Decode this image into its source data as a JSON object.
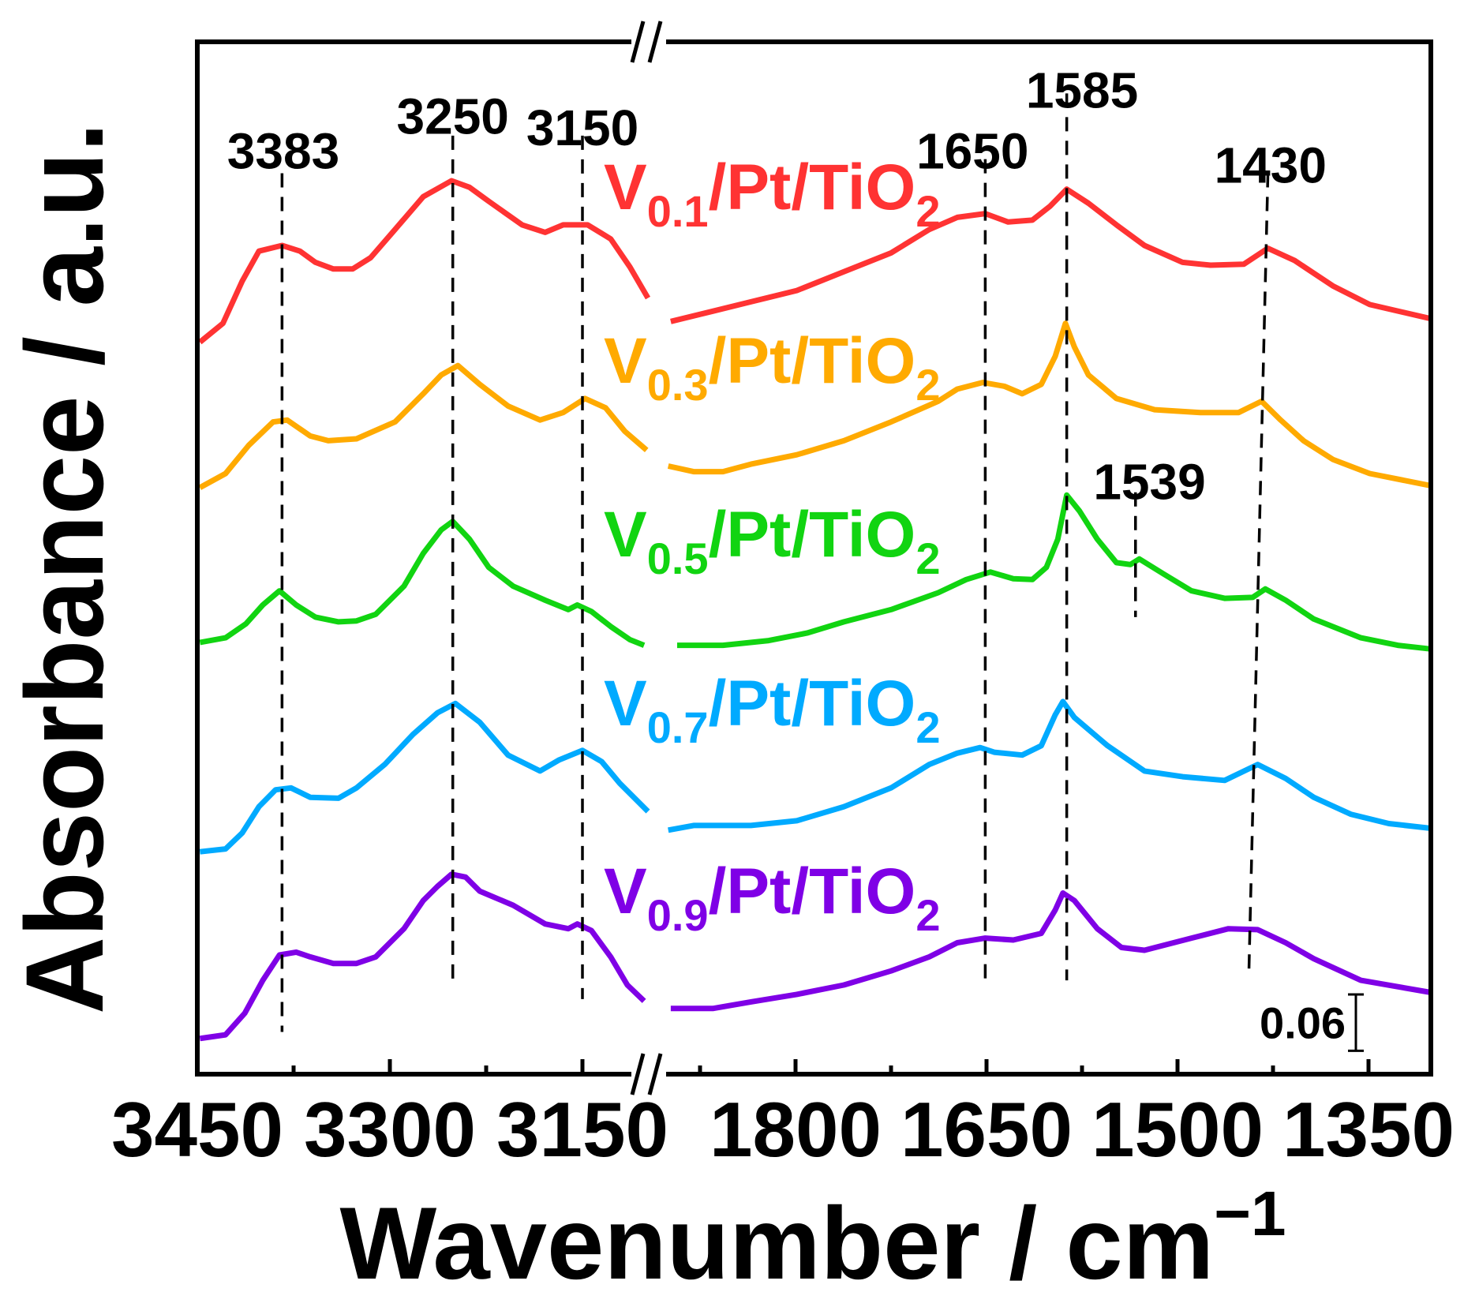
{
  "chart_data": {
    "type": "line",
    "title": "",
    "xlabel": "Wavenumber / cm",
    "xlabel_superscript": "−1",
    "ylabel": "Absorbance / a.u.",
    "x_axis": {
      "reversed": true,
      "broken": true,
      "segments": [
        {
          "name": "left",
          "range": [
            3450,
            3095
          ],
          "ticks": [
            3450,
            3300,
            3150
          ],
          "minor_ticks": [
            3375,
            3225
          ]
        },
        {
          "name": "right",
          "range": [
            1905,
            1300
          ],
          "ticks": [
            1800,
            1650,
            1500,
            1350
          ],
          "minor_ticks": [
            1875,
            1725,
            1575,
            1425
          ]
        }
      ],
      "tick_labels": [
        "3450",
        "3300",
        "3150",
        "1800",
        "1650",
        "1500",
        "1350"
      ]
    },
    "ylim": [
      0,
      1.1
    ],
    "grid": false,
    "scale_bar": {
      "value": 0.06,
      "label": "0.06"
    },
    "series": [
      {
        "name": "V0.1/Pt/TiO2",
        "label_main": "V",
        "label_sub": "0.1",
        "label_rest": "/Pt/TiO",
        "label_sub2": "2",
        "color": "#ff3333",
        "left": {
          "x": [
            3448,
            3430,
            3415,
            3402,
            3384,
            3370,
            3358,
            3344,
            3329,
            3315,
            3296,
            3274,
            3252,
            3238,
            3223,
            3197,
            3179,
            3165,
            3146,
            3128,
            3113,
            3099
          ],
          "y": [
            0.78,
            0.8,
            0.845,
            0.877,
            0.883,
            0.877,
            0.865,
            0.858,
            0.858,
            0.87,
            0.9,
            0.935,
            0.952,
            0.945,
            0.93,
            0.905,
            0.897,
            0.905,
            0.905,
            0.89,
            0.86,
            0.827
          ]
        },
        "right": {
          "x": [
            1898,
            1865,
            1835,
            1799,
            1762,
            1725,
            1695,
            1673,
            1651,
            1633,
            1614,
            1600,
            1587,
            1570,
            1548,
            1526,
            1496,
            1474,
            1448,
            1429,
            1408,
            1378,
            1349,
            1301
          ],
          "y": [
            0.802,
            0.813,
            0.823,
            0.835,
            0.855,
            0.875,
            0.9,
            0.913,
            0.917,
            0.908,
            0.91,
            0.925,
            0.943,
            0.928,
            0.905,
            0.883,
            0.865,
            0.862,
            0.863,
            0.88,
            0.867,
            0.84,
            0.82,
            0.805
          ]
        }
      },
      {
        "name": "V0.3/Pt/TiO2",
        "label_main": "V",
        "label_sub": "0.3",
        "label_rest": "/Pt/TiO",
        "label_sub2": "2",
        "color": "#ffaa00",
        "left": {
          "x": [
            3448,
            3428,
            3410,
            3391,
            3380,
            3362,
            3348,
            3326,
            3296,
            3274,
            3260,
            3247,
            3230,
            3208,
            3183,
            3165,
            3148,
            3132,
            3117,
            3100
          ],
          "y": [
            0.625,
            0.64,
            0.67,
            0.695,
            0.697,
            0.68,
            0.675,
            0.677,
            0.695,
            0.725,
            0.745,
            0.755,
            0.735,
            0.712,
            0.697,
            0.705,
            0.72,
            0.71,
            0.685,
            0.665
          ]
        },
        "right": {
          "x": [
            1900,
            1880,
            1857,
            1835,
            1799,
            1762,
            1725,
            1688,
            1673,
            1653,
            1636,
            1622,
            1607,
            1596,
            1588,
            1581,
            1570,
            1548,
            1518,
            1482,
            1452,
            1434,
            1419,
            1401,
            1378,
            1349,
            1301
          ],
          "y": [
            0.648,
            0.642,
            0.642,
            0.65,
            0.66,
            0.675,
            0.695,
            0.717,
            0.73,
            0.737,
            0.733,
            0.725,
            0.735,
            0.765,
            0.8,
            0.775,
            0.745,
            0.72,
            0.708,
            0.705,
            0.705,
            0.717,
            0.697,
            0.675,
            0.655,
            0.64,
            0.627
          ]
        }
      },
      {
        "name": "V0.5/Pt/TiO2",
        "label_main": "V",
        "label_sub": "0.5",
        "label_rest": "/Pt/TiO",
        "label_sub2": "2",
        "color": "#11d411",
        "left": {
          "x": [
            3448,
            3428,
            3412,
            3399,
            3386,
            3373,
            3358,
            3340,
            3326,
            3311,
            3289,
            3274,
            3260,
            3251,
            3238,
            3223,
            3204,
            3179,
            3161,
            3154,
            3143,
            3128,
            3113,
            3102
          ],
          "y": [
            0.46,
            0.465,
            0.48,
            0.5,
            0.515,
            0.5,
            0.487,
            0.482,
            0.483,
            0.49,
            0.52,
            0.555,
            0.58,
            0.589,
            0.57,
            0.54,
            0.52,
            0.505,
            0.495,
            0.5,
            0.493,
            0.477,
            0.463,
            0.457
          ]
        },
        "right": {
          "x": [
            1893,
            1857,
            1821,
            1791,
            1762,
            1725,
            1688,
            1666,
            1647,
            1629,
            1614,
            1603,
            1594,
            1587,
            1577,
            1563,
            1548,
            1537,
            1530,
            1511,
            1489,
            1463,
            1441,
            1431,
            1415,
            1393,
            1356,
            1327,
            1301
          ],
          "y": [
            0.457,
            0.457,
            0.462,
            0.47,
            0.482,
            0.495,
            0.513,
            0.527,
            0.535,
            0.528,
            0.527,
            0.54,
            0.57,
            0.617,
            0.6,
            0.57,
            0.545,
            0.543,
            0.549,
            0.533,
            0.515,
            0.507,
            0.508,
            0.517,
            0.505,
            0.485,
            0.465,
            0.457,
            0.453
          ]
        }
      },
      {
        "name": "V0.7/Pt/TiO2",
        "label_main": "V",
        "label_sub": "0.7",
        "label_rest": "/Pt/TiO",
        "label_sub2": "2",
        "color": "#00aaff",
        "left": {
          "x": [
            3448,
            3428,
            3415,
            3402,
            3389,
            3377,
            3362,
            3340,
            3326,
            3304,
            3282,
            3263,
            3249,
            3230,
            3208,
            3183,
            3168,
            3150,
            3135,
            3121,
            3099
          ],
          "y": [
            0.237,
            0.24,
            0.257,
            0.285,
            0.303,
            0.305,
            0.295,
            0.294,
            0.305,
            0.33,
            0.362,
            0.385,
            0.395,
            0.375,
            0.34,
            0.323,
            0.335,
            0.345,
            0.333,
            0.31,
            0.28
          ]
        },
        "right": {
          "x": [
            1900,
            1880,
            1835,
            1799,
            1762,
            1725,
            1695,
            1673,
            1655,
            1644,
            1622,
            1607,
            1596,
            1590,
            1581,
            1555,
            1526,
            1496,
            1463,
            1437,
            1415,
            1393,
            1364,
            1334,
            1301
          ],
          "y": [
            0.26,
            0.265,
            0.265,
            0.27,
            0.285,
            0.305,
            0.33,
            0.342,
            0.348,
            0.343,
            0.34,
            0.35,
            0.383,
            0.397,
            0.38,
            0.35,
            0.323,
            0.317,
            0.313,
            0.33,
            0.315,
            0.295,
            0.277,
            0.267,
            0.262
          ]
        }
      },
      {
        "name": "V0.9/Pt/TiO2",
        "label_main": "V",
        "label_sub": "0.9",
        "label_rest": "/Pt/TiO",
        "label_sub2": "2",
        "color": "#7f00e6",
        "left": {
          "x": [
            3448,
            3428,
            3413,
            3399,
            3386,
            3373,
            3362,
            3344,
            3326,
            3311,
            3289,
            3274,
            3263,
            3252,
            3241,
            3230,
            3204,
            3179,
            3161,
            3154,
            3143,
            3128,
            3115,
            3102
          ],
          "y": [
            0.038,
            0.042,
            0.065,
            0.1,
            0.127,
            0.13,
            0.125,
            0.118,
            0.118,
            0.125,
            0.155,
            0.185,
            0.2,
            0.213,
            0.21,
            0.195,
            0.18,
            0.16,
            0.155,
            0.16,
            0.153,
            0.125,
            0.095,
            0.078
          ]
        },
        "right": {
          "x": [
            1898,
            1865,
            1835,
            1799,
            1762,
            1725,
            1695,
            1673,
            1651,
            1629,
            1607,
            1596,
            1590,
            1581,
            1563,
            1544,
            1526,
            1489,
            1460,
            1437,
            1415,
            1393,
            1356,
            1301
          ],
          "y": [
            0.07,
            0.07,
            0.077,
            0.085,
            0.095,
            0.11,
            0.125,
            0.14,
            0.145,
            0.143,
            0.15,
            0.175,
            0.193,
            0.185,
            0.155,
            0.135,
            0.132,
            0.145,
            0.155,
            0.154,
            0.14,
            0.123,
            0.1,
            0.087
          ]
        }
      }
    ],
    "annotations": [
      {
        "label": "3383",
        "x_top": 3384,
        "x_bottom": 3384,
        "y_range": [
          0.045,
          0.96
        ],
        "label_pos": [
          3383,
          0.985
        ]
      },
      {
        "label": "3250",
        "x_top": 3251,
        "x_bottom": 3251,
        "y_range": [
          0.095,
          1.0
        ],
        "label_pos": [
          3251,
          1.022
        ]
      },
      {
        "label": "3150",
        "x_top": 3150,
        "x_bottom": 3150,
        "y_range": [
          0.08,
          1.0
        ],
        "label_pos": [
          3150,
          1.01
        ]
      },
      {
        "label": "1650",
        "x_top": 1651,
        "x_bottom": 1651,
        "y_range": [
          0.1,
          0.975
        ],
        "label_pos": [
          1661,
          0.985
        ]
      },
      {
        "label": "1585",
        "x_top": 1587,
        "x_bottom": 1587,
        "y_range": [
          0.1,
          1.045
        ],
        "label_pos": [
          1575,
          1.05
        ]
      },
      {
        "label": "1430",
        "x_top": 1429,
        "x_bottom": 1444,
        "y_range": [
          0.105,
          0.96
        ],
        "label_pos": [
          1427,
          0.97
        ]
      },
      {
        "label": "1539",
        "x_top": 1533,
        "x_bottom": 1533,
        "y_range": [
          0.487,
          0.62
        ],
        "label_pos": [
          1522,
          0.633
        ]
      }
    ]
  }
}
